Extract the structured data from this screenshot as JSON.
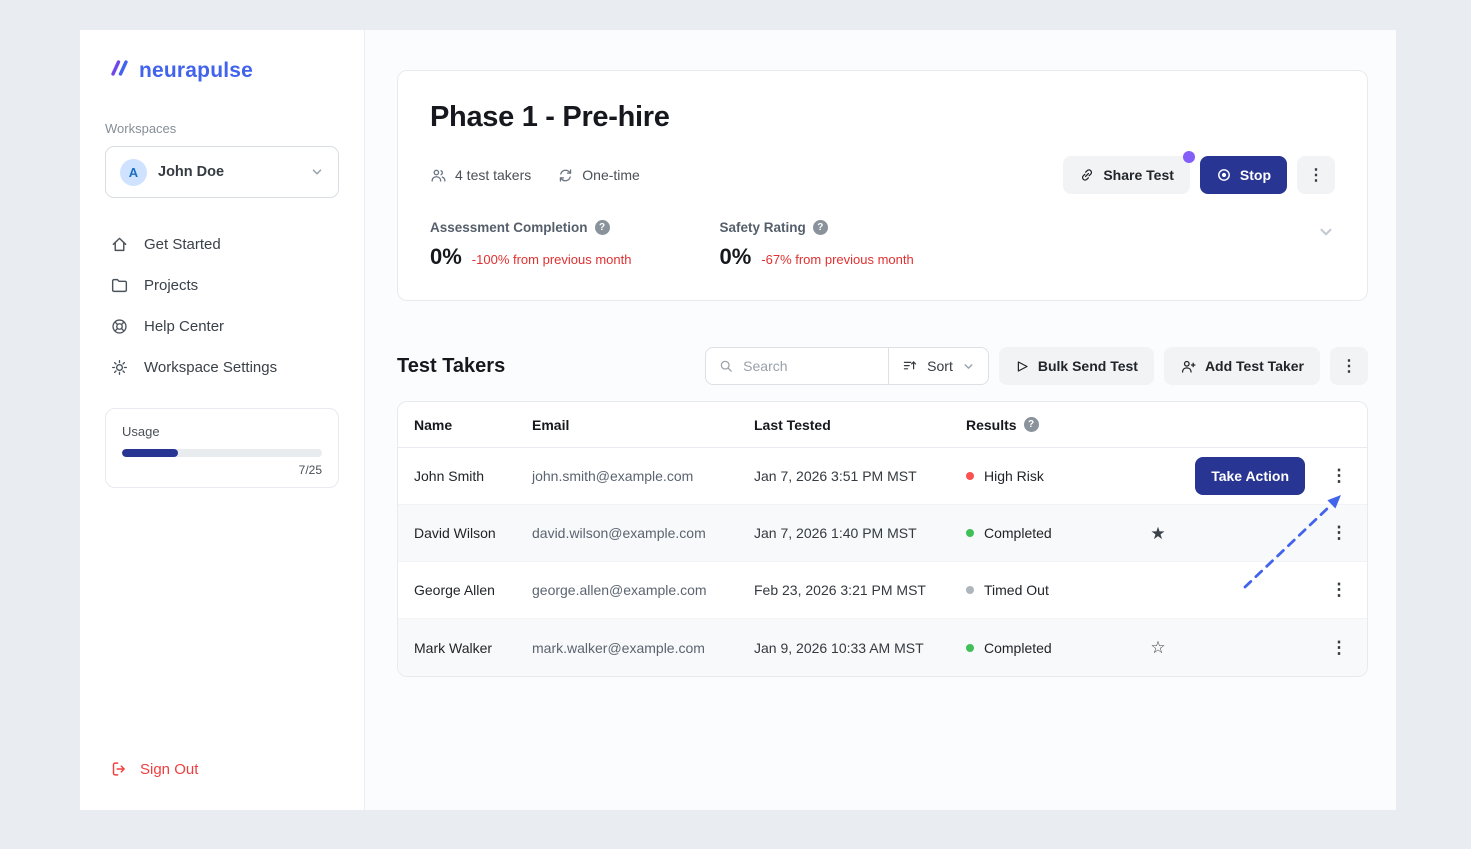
{
  "brand": {
    "name": "neurapulse"
  },
  "sidebar": {
    "workspaces_label": "Workspaces",
    "workspace": {
      "avatar": "A",
      "name": "John Doe"
    },
    "nav": [
      {
        "label": "Get Started"
      },
      {
        "label": "Projects"
      },
      {
        "label": "Help Center"
      },
      {
        "label": "Workspace Settings"
      }
    ],
    "usage": {
      "label": "Usage",
      "display": "7/25",
      "percent": 28
    },
    "sign_out_label": "Sign Out"
  },
  "header": {
    "title": "Phase 1 - Pre-hire",
    "test_takers_meta": "4 test takers",
    "frequency_meta": "One-time",
    "share_button": "Share Test",
    "stop_button": "Stop",
    "stats": [
      {
        "label": "Assessment Completion",
        "value": "0%",
        "delta": "-100% from previous month"
      },
      {
        "label": "Safety Rating",
        "value": "0%",
        "delta": "-67% from previous month"
      }
    ]
  },
  "test_takers": {
    "title": "Test Takers",
    "search_placeholder": "Search",
    "sort_label": "Sort",
    "bulk_send_label": "Bulk Send Test",
    "add_label": "Add Test Taker",
    "columns": {
      "name": "Name",
      "email": "Email",
      "last_tested": "Last Tested",
      "results": "Results"
    },
    "rows": [
      {
        "name": "John Smith",
        "email": "john.smith@example.com",
        "last_tested": "Jan 7, 2026 3:51 PM MST",
        "result": "High Risk",
        "result_color": "#fa5252",
        "action_label": "Take Action",
        "star": ""
      },
      {
        "name": "David Wilson",
        "email": "david.wilson@example.com",
        "last_tested": "Jan 7, 2026 1:40 PM MST",
        "result": "Completed",
        "result_color": "#40c057",
        "star": "★"
      },
      {
        "name": "George Allen",
        "email": "george.allen@example.com",
        "last_tested": "Feb 23, 2026 3:21 PM MST",
        "result": "Timed Out",
        "result_color": "#adb5bd",
        "star": ""
      },
      {
        "name": "Mark Walker",
        "email": "mark.walker@example.com",
        "last_tested": "Jan 9, 2026 10:33 AM MST",
        "result": "Completed",
        "result_color": "#40c057",
        "star": "☆"
      }
    ]
  },
  "glyphs": {
    "kebab": "⋮",
    "help": "?"
  },
  "colors": {
    "accent_navy": "#283593",
    "brand_blue": "#4263eb",
    "negative_red": "#e03131",
    "notification_purple": "#845ef7",
    "arrow_blue": "#4263eb"
  }
}
